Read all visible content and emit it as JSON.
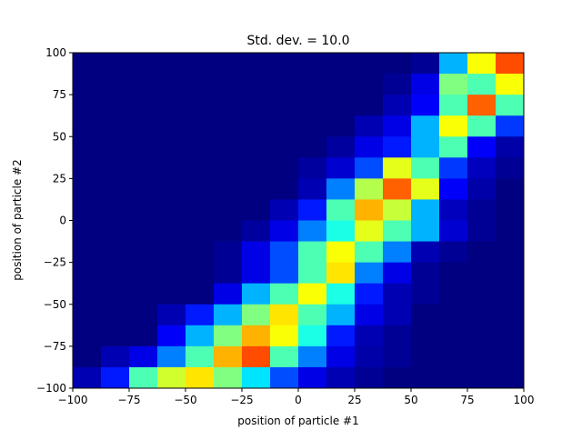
{
  "chart_data": {
    "type": "heatmap",
    "title": "Std. dev. = 10.0",
    "xlabel": "position of particle #1",
    "ylabel": "position of particle #2",
    "xlim": [
      -100,
      100
    ],
    "ylim": [
      -100,
      100
    ],
    "xticks": [
      "−100",
      "−75",
      "−50",
      "−25",
      "0",
      "25",
      "50",
      "75",
      "100"
    ],
    "yticks": [
      "−100",
      "−75",
      "−50",
      "−25",
      "0",
      "25",
      "50",
      "75",
      "100"
    ],
    "x_tick_values": [
      -100,
      -75,
      -50,
      -25,
      0,
      25,
      50,
      75,
      100
    ],
    "y_tick_values": [
      -100,
      -75,
      -50,
      -25,
      0,
      25,
      50,
      75,
      100
    ],
    "bins": 16,
    "bin_width": 12.5,
    "colormap": "jet",
    "color_range": [
      0,
      1
    ],
    "grid": false,
    "rows_top_to_bottom": [
      [
        0,
        0,
        0,
        0,
        0,
        0,
        0,
        0,
        0,
        0,
        0,
        0,
        0.02,
        0.3,
        0.62,
        0.8
      ],
      [
        0,
        0,
        0,
        0,
        0,
        0,
        0,
        0,
        0,
        0,
        0,
        0.02,
        0.1,
        0.5,
        0.45,
        0.62
      ],
      [
        0,
        0,
        0,
        0,
        0,
        0,
        0,
        0,
        0,
        0,
        0,
        0.05,
        0.12,
        0.45,
        0.78,
        0.45
      ],
      [
        0,
        0,
        0,
        0,
        0,
        0,
        0,
        0,
        0,
        0,
        0.05,
        0.1,
        0.3,
        0.62,
        0.45,
        0.18
      ],
      [
        0,
        0,
        0,
        0,
        0,
        0,
        0,
        0,
        0,
        0.03,
        0.1,
        0.15,
        0.3,
        0.45,
        0.12,
        0.04
      ],
      [
        0,
        0,
        0,
        0,
        0,
        0,
        0,
        0,
        0.03,
        0.08,
        0.2,
        0.6,
        0.45,
        0.18,
        0.06,
        0.02
      ],
      [
        0,
        0,
        0,
        0,
        0,
        0,
        0,
        0,
        0.05,
        0.25,
        0.55,
        0.78,
        0.6,
        0.12,
        0.04,
        0
      ],
      [
        0,
        0,
        0,
        0,
        0,
        0,
        0,
        0.05,
        0.15,
        0.45,
        0.7,
        0.57,
        0.3,
        0.06,
        0.02,
        0
      ],
      [
        0,
        0,
        0,
        0,
        0,
        0,
        0.03,
        0.1,
        0.25,
        0.4,
        0.6,
        0.45,
        0.3,
        0.08,
        0.02,
        0
      ],
      [
        0,
        0,
        0,
        0,
        0,
        0.02,
        0.1,
        0.2,
        0.45,
        0.62,
        0.45,
        0.25,
        0.05,
        0.02,
        0,
        0
      ],
      [
        0,
        0,
        0,
        0,
        0,
        0.02,
        0.1,
        0.2,
        0.45,
        0.65,
        0.25,
        0.1,
        0.02,
        0,
        0,
        0
      ],
      [
        0,
        0,
        0,
        0,
        0,
        0.1,
        0.3,
        0.45,
        0.62,
        0.4,
        0.15,
        0.05,
        0.02,
        0,
        0,
        0
      ],
      [
        0,
        0,
        0,
        0.05,
        0.15,
        0.3,
        0.5,
        0.65,
        0.45,
        0.3,
        0.1,
        0.05,
        0,
        0,
        0,
        0
      ],
      [
        0,
        0,
        0,
        0.12,
        0.3,
        0.5,
        0.7,
        0.62,
        0.4,
        0.15,
        0.05,
        0.02,
        0,
        0,
        0,
        0
      ],
      [
        0,
        0.05,
        0.1,
        0.25,
        0.45,
        0.7,
        0.8,
        0.45,
        0.25,
        0.1,
        0.04,
        0.02,
        0,
        0,
        0,
        0
      ],
      [
        0.05,
        0.15,
        0.45,
        0.58,
        0.65,
        0.5,
        0.35,
        0.2,
        0.1,
        0.05,
        0.02,
        0,
        0,
        0,
        0,
        0
      ]
    ]
  }
}
